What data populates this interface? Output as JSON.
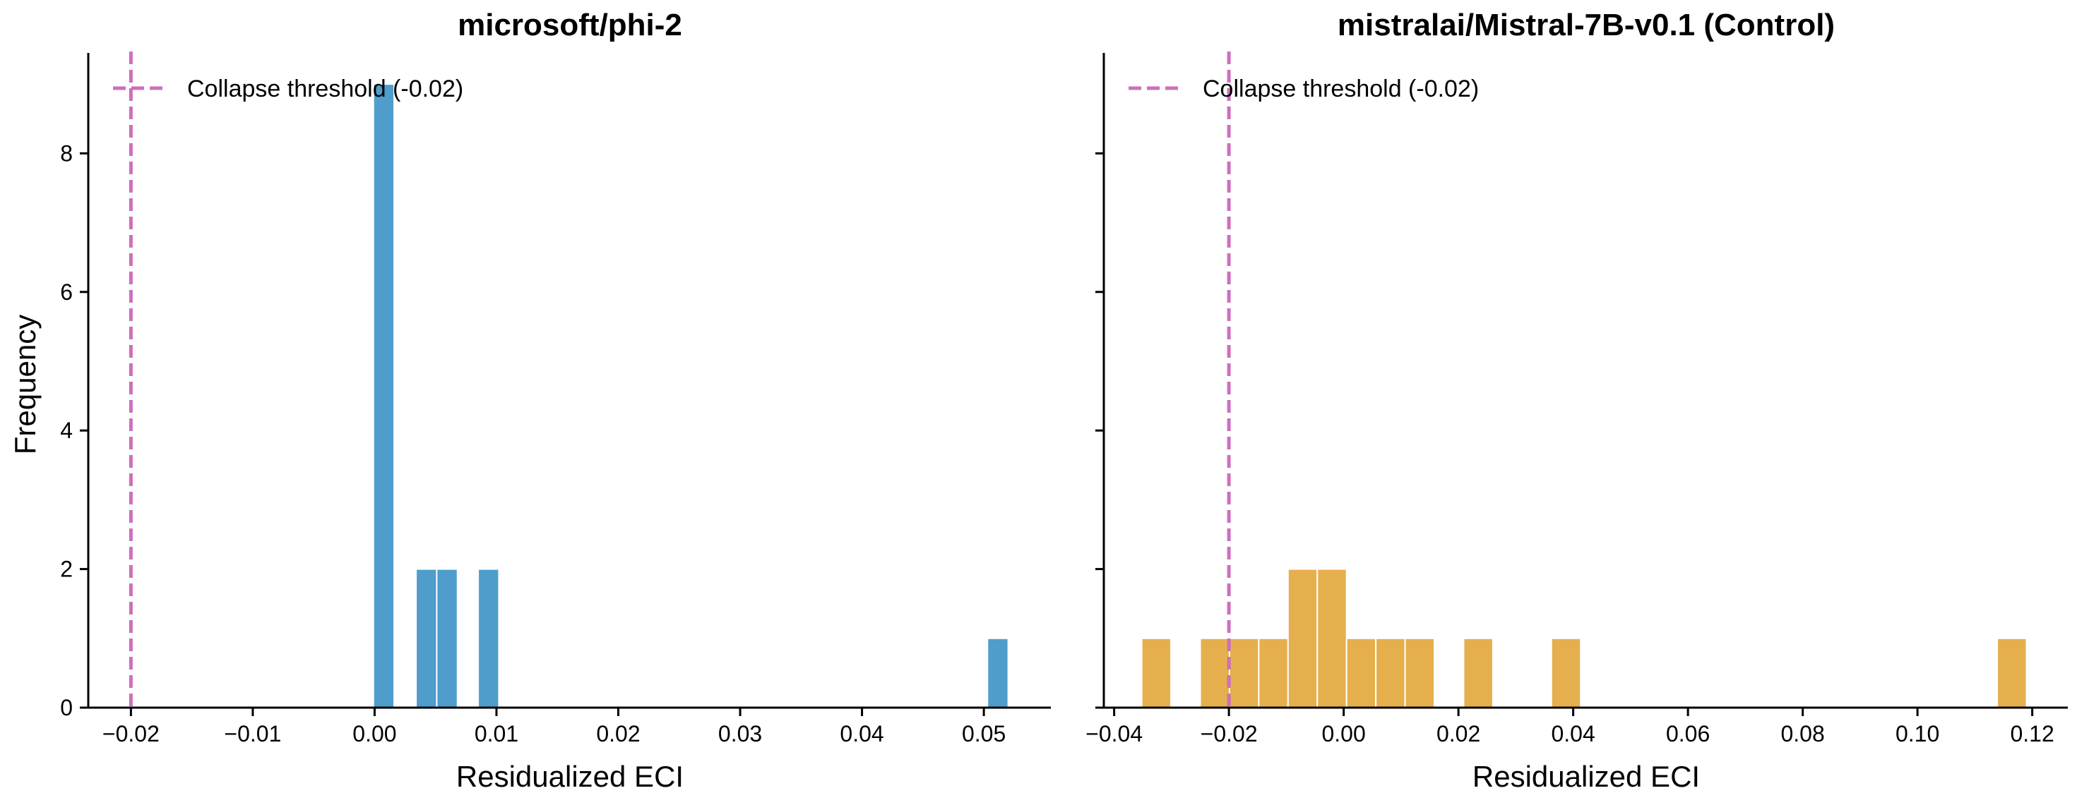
{
  "chart_data": [
    {
      "type": "bar",
      "title": "microsoft/phi-2",
      "xlabel": "Residualized ECI",
      "ylabel": "Frequency",
      "xlim": [
        -0.0235,
        0.0555
      ],
      "ylim": [
        0,
        9.45
      ],
      "xticks": [
        -0.02,
        -0.01,
        0.0,
        0.01,
        0.02,
        0.03,
        0.04,
        0.05
      ],
      "xtick_labels": [
        "−0.02",
        "−0.01",
        "0.00",
        "0.01",
        "0.02",
        "0.03",
        "0.04",
        "0.05"
      ],
      "yticks": [
        0,
        2,
        4,
        6,
        8
      ],
      "ytick_labels": [
        "0",
        "2",
        "4",
        "6",
        "8"
      ],
      "color": "#4f9dcb",
      "bins": [
        {
          "x0": -0.0001,
          "x1": 0.0016,
          "count": 9
        },
        {
          "x0": 0.0034,
          "x1": 0.0051,
          "count": 2
        },
        {
          "x0": 0.0051,
          "x1": 0.0068,
          "count": 2
        },
        {
          "x0": 0.0085,
          "x1": 0.0102,
          "count": 2
        },
        {
          "x0": 0.0503,
          "x1": 0.052,
          "count": 1
        }
      ],
      "threshold": {
        "value": -0.02,
        "label": "Collapse threshold (-0.02)",
        "color": "#cc6fbe"
      },
      "legend_position": "upper-left"
    },
    {
      "type": "bar",
      "title": "mistralai/Mistral-7B-v0.1 (Control)",
      "xlabel": "Residualized ECI",
      "ylabel": "",
      "xlim": [
        -0.0418,
        0.1262
      ],
      "ylim": [
        0,
        9.45
      ],
      "xticks": [
        -0.04,
        -0.02,
        0.0,
        0.02,
        0.04,
        0.06,
        0.08,
        0.1,
        0.12
      ],
      "xtick_labels": [
        "−0.04",
        "−0.02",
        "0.00",
        "0.02",
        "0.04",
        "0.06",
        "0.08",
        "0.10",
        "0.12"
      ],
      "yticks": [
        0,
        2,
        4,
        6,
        8
      ],
      "ytick_labels": [
        "",
        "",
        "",
        "",
        ""
      ],
      "color": "#e6af4d",
      "bins": [
        {
          "x0": -0.0352,
          "x1": -0.0301,
          "count": 1
        },
        {
          "x0": -0.025,
          "x1": -0.0199,
          "count": 1
        },
        {
          "x0": -0.0199,
          "x1": -0.0148,
          "count": 1
        },
        {
          "x0": -0.0148,
          "x1": -0.0097,
          "count": 1
        },
        {
          "x0": -0.0097,
          "x1": -0.0046,
          "count": 2
        },
        {
          "x0": -0.0046,
          "x1": 0.0005,
          "count": 2
        },
        {
          "x0": 0.0005,
          "x1": 0.0056,
          "count": 1
        },
        {
          "x0": 0.0056,
          "x1": 0.0107,
          "count": 1
        },
        {
          "x0": 0.0107,
          "x1": 0.0158,
          "count": 1
        },
        {
          "x0": 0.0209,
          "x1": 0.026,
          "count": 1
        },
        {
          "x0": 0.0362,
          "x1": 0.0413,
          "count": 1
        },
        {
          "x0": 0.1139,
          "x1": 0.119,
          "count": 1
        }
      ],
      "threshold": {
        "value": -0.02,
        "label": "Collapse threshold (-0.02)",
        "color": "#cc6fbe"
      },
      "legend_position": "upper-left"
    }
  ]
}
